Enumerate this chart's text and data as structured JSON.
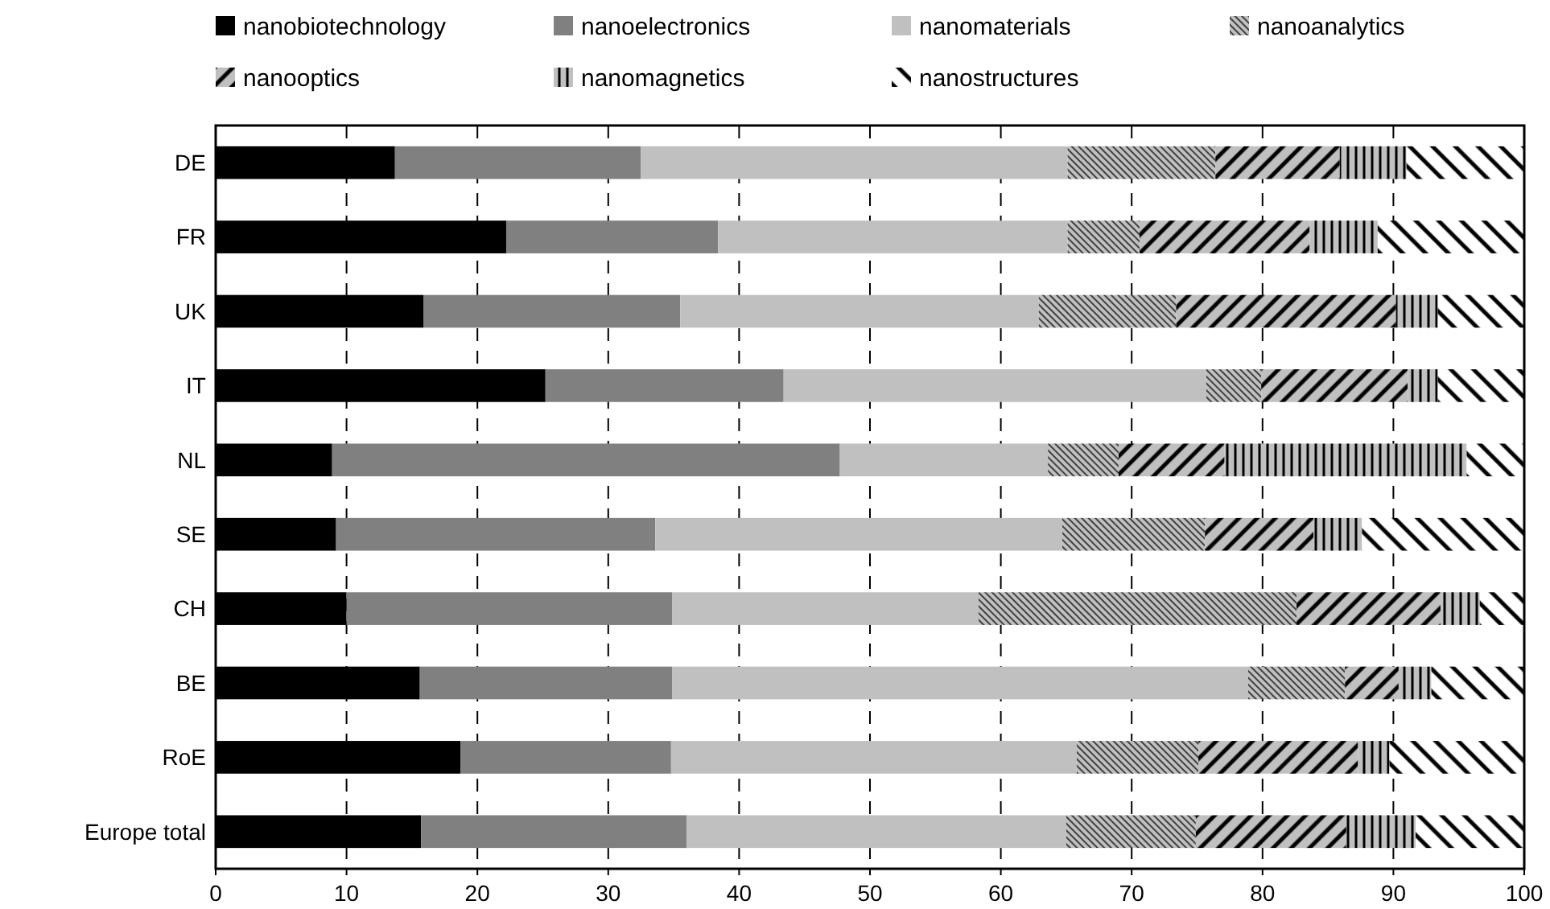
{
  "chart_data": {
    "type": "bar",
    "orientation": "horizontal",
    "stacked": true,
    "categories": [
      "DE",
      "FR",
      "UK",
      "IT",
      "NL",
      "SE",
      "CH",
      "BE",
      "RoE",
      "Europe total"
    ],
    "series": [
      {
        "name": "nanobiotechnology",
        "color": "#000000",
        "values": [
          13.7,
          22.2,
          15.9,
          25.2,
          8.9,
          9.2,
          10.0,
          15.6,
          18.7,
          15.7
        ]
      },
      {
        "name": "nanoelectronics",
        "color": "#808080",
        "values": [
          18.8,
          16.2,
          19.6,
          18.2,
          38.8,
          24.4,
          24.9,
          19.3,
          16.1,
          20.3
        ]
      },
      {
        "name": "nanomaterials",
        "color": "#c0c0c0",
        "values": [
          32.6,
          26.7,
          27.4,
          32.3,
          15.9,
          31.1,
          23.4,
          44.0,
          31.0,
          29.0
        ]
      },
      {
        "name": "nanoanalytics",
        "color": "#c0c0c0",
        "values": [
          11.3,
          5.5,
          10.5,
          4.2,
          5.4,
          10.9,
          24.3,
          7.4,
          9.3,
          9.9
        ]
      },
      {
        "name": "nanooptics",
        "color": "#c0c0c0",
        "values": [
          9.5,
          13.0,
          16.8,
          11.2,
          8.1,
          8.3,
          11.0,
          4.1,
          12.2,
          11.5
        ]
      },
      {
        "name": "nanomagnetics",
        "color": "#c0c0c0",
        "values": [
          5.1,
          5.2,
          3.2,
          2.3,
          18.5,
          3.7,
          3.0,
          2.5,
          2.4,
          5.3
        ]
      },
      {
        "name": "nanostructures",
        "color": "#ffffff",
        "values": [
          9.0,
          11.2,
          6.6,
          6.6,
          4.4,
          12.4,
          3.4,
          7.1,
          10.3,
          8.3
        ]
      }
    ],
    "xlim": [
      0,
      100
    ],
    "xticks": [
      0,
      10,
      20,
      30,
      40,
      50,
      60,
      70,
      80,
      90,
      100
    ],
    "grid": "x",
    "legend": "top"
  }
}
